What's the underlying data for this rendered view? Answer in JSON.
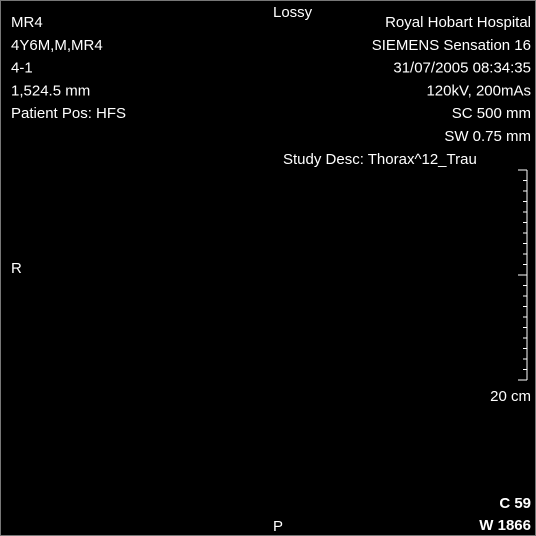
{
  "overlay": {
    "top_center": "Lossy",
    "top_left": [
      "MR4",
      "4Y6M,M,MR4",
      "4-1",
      "1,524.5 mm",
      "Patient Pos: HFS"
    ],
    "top_right": [
      "Royal Hobart Hospital",
      "SIEMENS Sensation 16",
      "31/07/2005 08:34:35",
      "120kV, 200mAs",
      "SC 500 mm",
      "SW 0.75 mm"
    ],
    "study_desc": "Study Desc: Thorax^12_Trau",
    "orientation_left": "R",
    "orientation_bottom": "P",
    "scale_label": "20 cm",
    "window_center": "C 59",
    "window_width": "W 1866"
  }
}
